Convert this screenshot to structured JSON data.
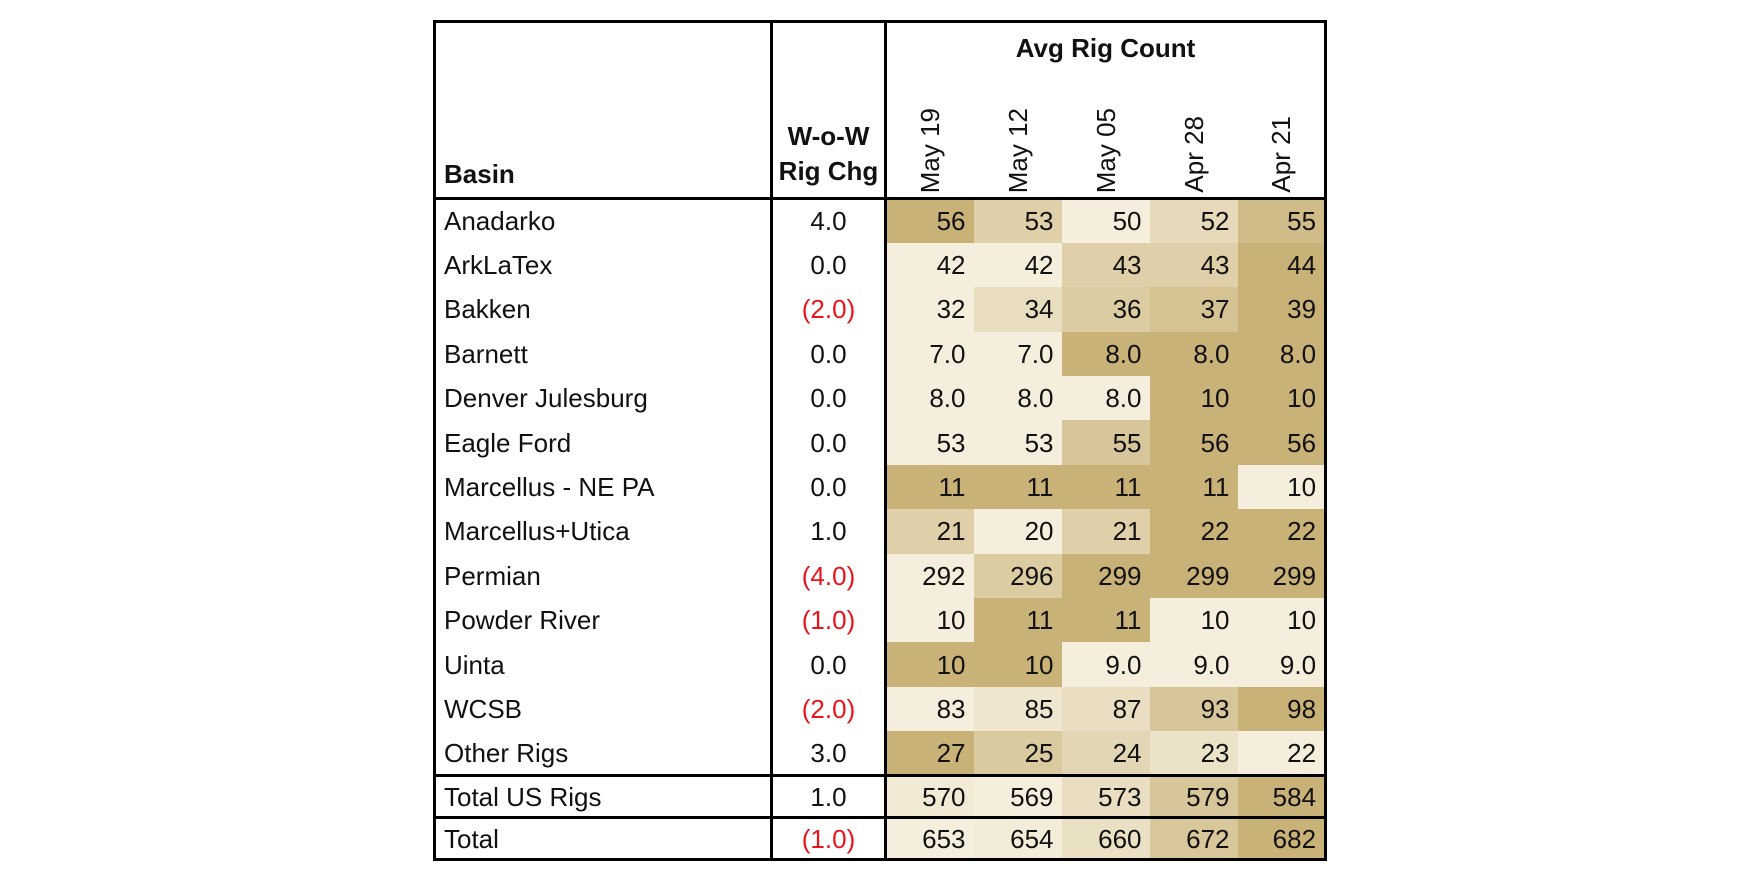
{
  "chart_data": {
    "type": "table",
    "header": {
      "basin": "Basin",
      "wow_line1": "W-o-W",
      "wow_line2": "Rig Chg",
      "group": "Avg Rig Count"
    },
    "weeks": [
      "May 19",
      "May 12",
      "May 05",
      "Apr 28",
      "Apr 21"
    ],
    "rows": [
      {
        "basin": "Anadarko",
        "wow": "4.0",
        "negative": false,
        "values": [
          "56",
          "53",
          "50",
          "52",
          "55"
        ]
      },
      {
        "basin": "ArkLaTex",
        "wow": "0.0",
        "negative": false,
        "values": [
          "42",
          "42",
          "43",
          "43",
          "44"
        ]
      },
      {
        "basin": "Bakken",
        "wow": "(2.0)",
        "negative": true,
        "values": [
          "32",
          "34",
          "36",
          "37",
          "39"
        ]
      },
      {
        "basin": "Barnett",
        "wow": "0.0",
        "negative": false,
        "values": [
          "7.0",
          "7.0",
          "8.0",
          "8.0",
          "8.0"
        ]
      },
      {
        "basin": "Denver Julesburg",
        "wow": "0.0",
        "negative": false,
        "values": [
          "8.0",
          "8.0",
          "8.0",
          "10",
          "10"
        ]
      },
      {
        "basin": "Eagle Ford",
        "wow": "0.0",
        "negative": false,
        "values": [
          "53",
          "53",
          "55",
          "56",
          "56"
        ]
      },
      {
        "basin": "Marcellus - NE PA",
        "wow": "0.0",
        "negative": false,
        "values": [
          "11",
          "11",
          "11",
          "11",
          "10"
        ]
      },
      {
        "basin": "Marcellus+Utica",
        "wow": "1.0",
        "negative": false,
        "values": [
          "21",
          "20",
          "21",
          "22",
          "22"
        ]
      },
      {
        "basin": "Permian",
        "wow": "(4.0)",
        "negative": true,
        "values": [
          "292",
          "296",
          "299",
          "299",
          "299"
        ]
      },
      {
        "basin": "Powder River",
        "wow": "(1.0)",
        "negative": true,
        "values": [
          "10",
          "11",
          "11",
          "10",
          "10"
        ]
      },
      {
        "basin": "Uinta",
        "wow": "0.0",
        "negative": false,
        "values": [
          "10",
          "10",
          "9.0",
          "9.0",
          "9.0"
        ]
      },
      {
        "basin": "WCSB",
        "wow": "(2.0)",
        "negative": true,
        "values": [
          "83",
          "85",
          "87",
          "93",
          "98"
        ]
      },
      {
        "basin": "Other Rigs",
        "wow": "3.0",
        "negative": false,
        "values": [
          "27",
          "25",
          "24",
          "23",
          "22"
        ]
      }
    ],
    "totals": [
      {
        "basin": "Total US Rigs",
        "wow": "1.0",
        "negative": false,
        "values": [
          "570",
          "569",
          "573",
          "579",
          "584"
        ]
      },
      {
        "basin": "Total",
        "wow": "(1.0)",
        "negative": true,
        "values": [
          "653",
          "654",
          "660",
          "672",
          "682"
        ]
      }
    ],
    "colors": {
      "heat_low": "#f5eedc",
      "heat_high": "#c8b277",
      "negative_text": "#e8141c"
    }
  }
}
